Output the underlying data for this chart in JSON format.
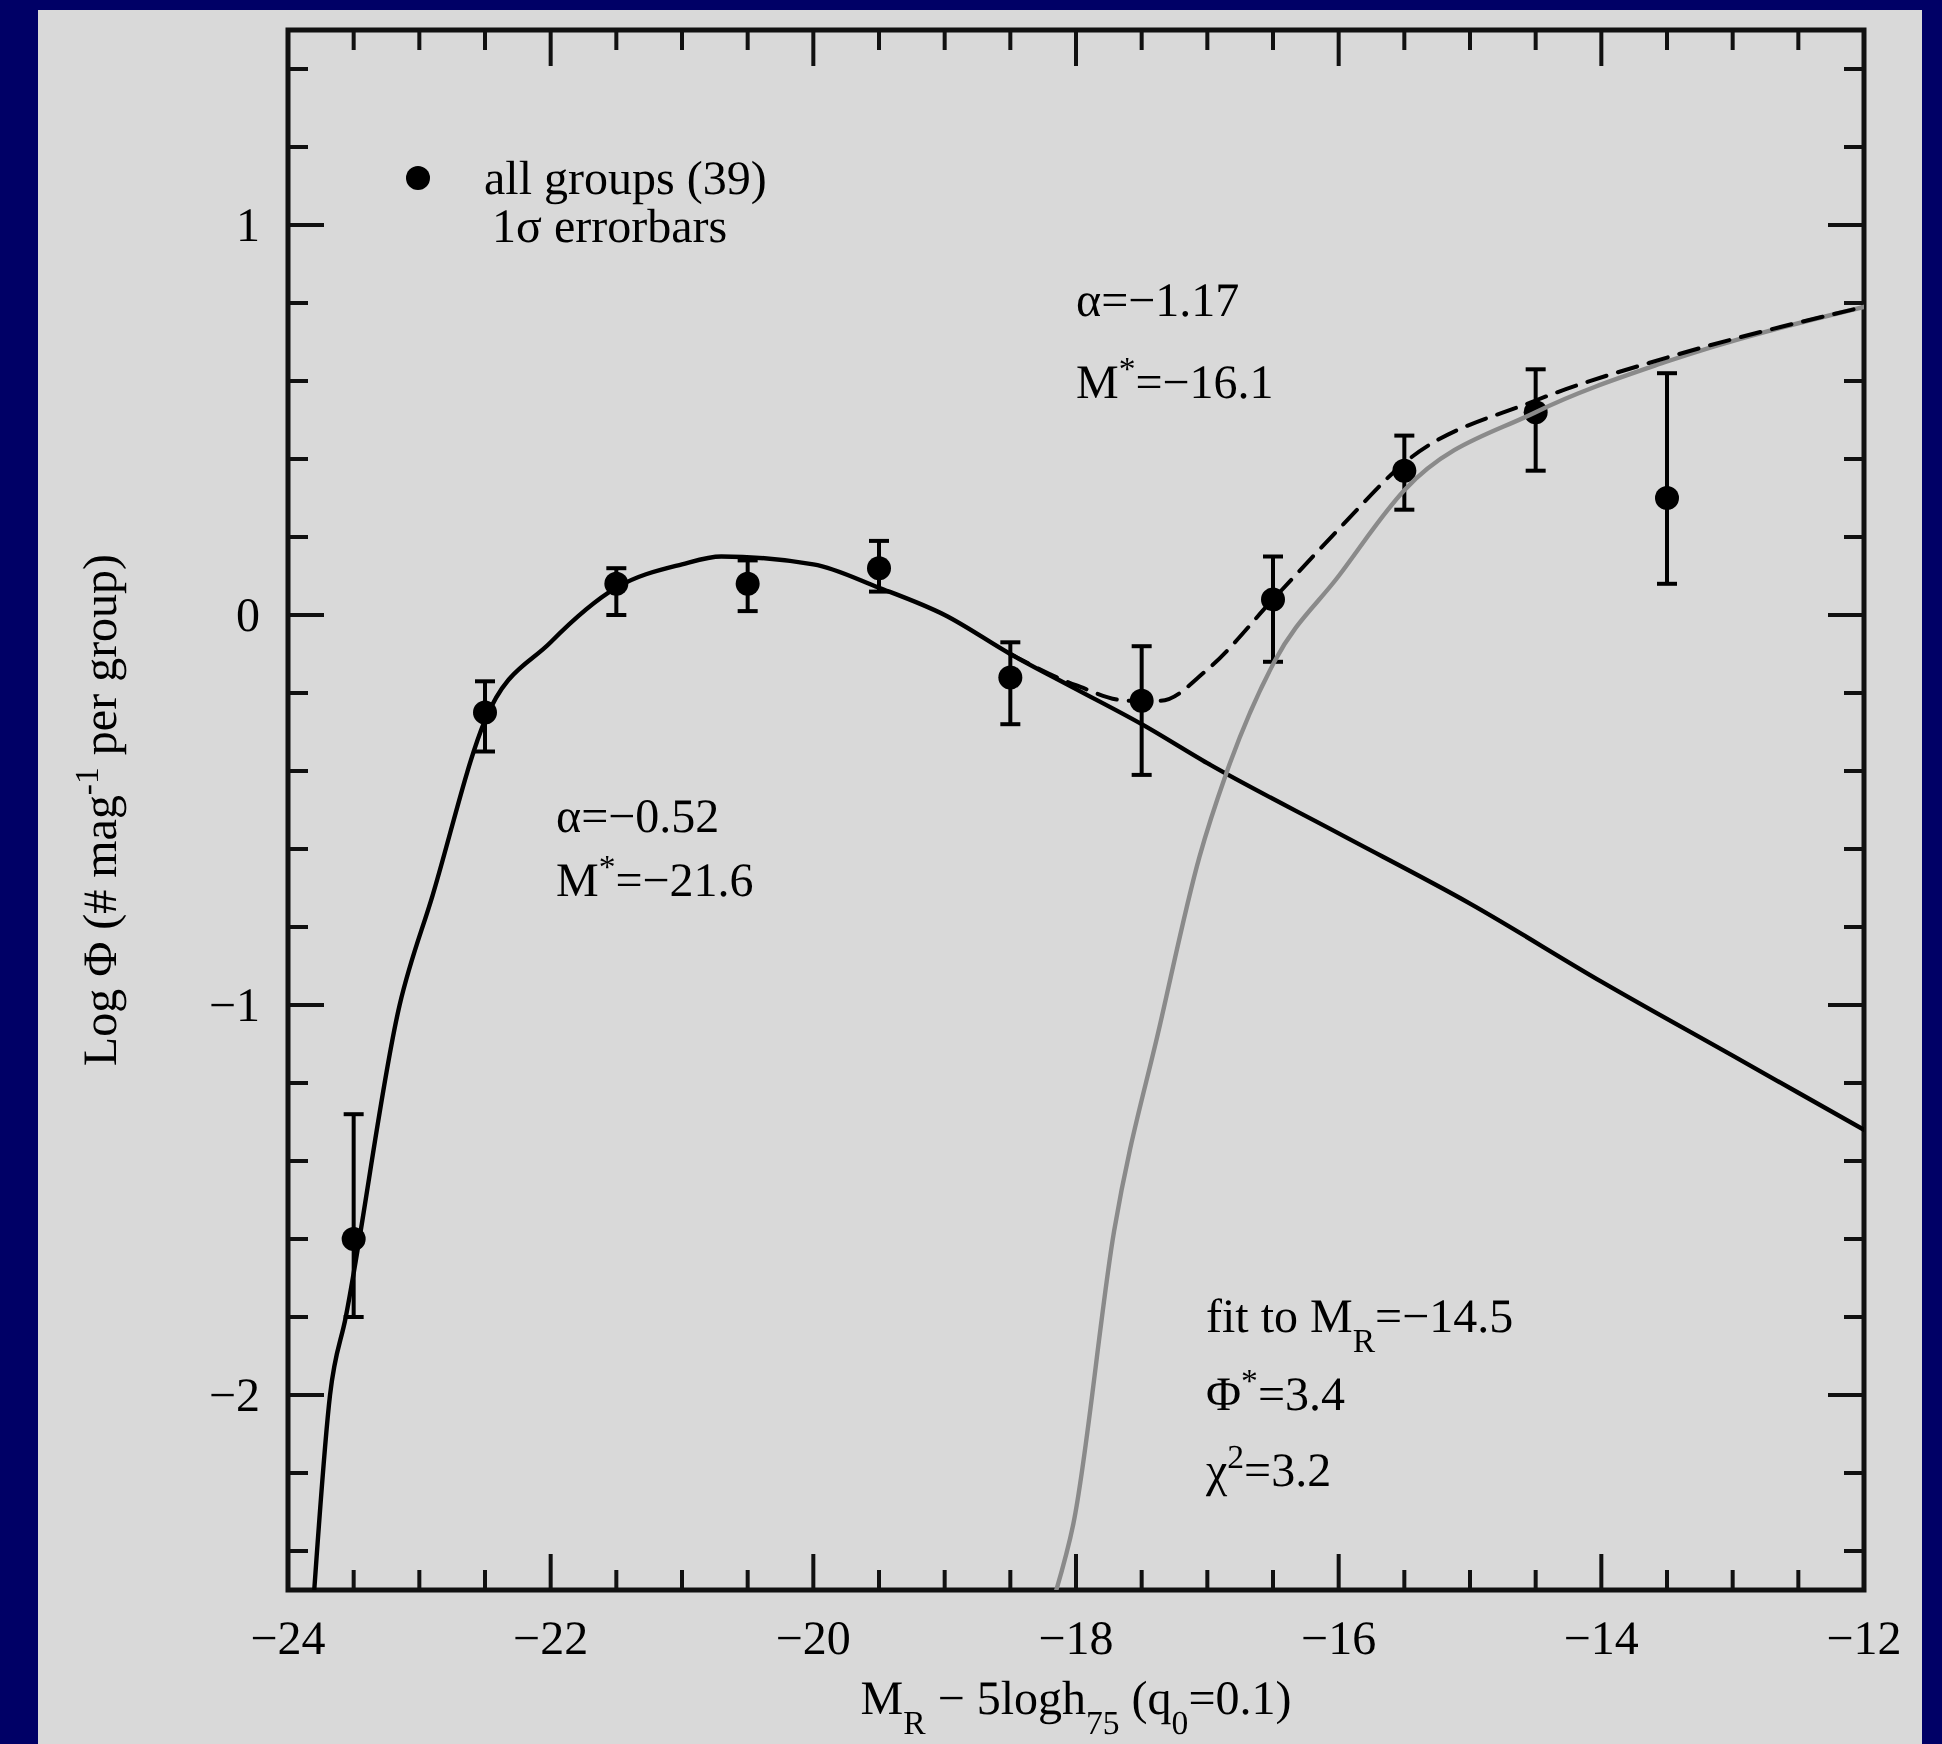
{
  "chart_data": {
    "type": "scatter",
    "xlabel": "M$_{R}$ − 5logh$_{75}$   (q$_{0}$=0.1)",
    "ylabel": "Log Φ (# mag$^{-1}$ per group)",
    "xlim": [
      -24,
      -12
    ],
    "ylim": [
      -2.5,
      1.5
    ],
    "xticks": [
      -24,
      {
        "value": -23.5,
        "label": null
      },
      {
        "value": -23,
        "label": null
      },
      {
        "value": -22.5,
        "label": null
      },
      -22,
      {
        "value": -21.5,
        "label": null
      },
      {
        "value": -21,
        "label": null
      },
      {
        "value": -20.5,
        "label": null
      },
      -20,
      {
        "value": -19.5,
        "label": null
      },
      {
        "value": -19,
        "label": null
      },
      {
        "value": -18.5,
        "label": null
      },
      -18,
      {
        "value": -17.5,
        "label": null
      },
      {
        "value": -17,
        "label": null
      },
      {
        "value": -16.5,
        "label": null
      },
      -16,
      {
        "value": -15.5,
        "label": null
      },
      {
        "value": -15,
        "label": null
      },
      {
        "value": -14.5,
        "label": null
      },
      -14,
      {
        "value": -13.5,
        "label": null
      },
      {
        "value": -13,
        "label": null
      },
      {
        "value": -12.5,
        "label": null
      },
      -12
    ],
    "yticks": [
      {
        "value": -2.4,
        "label": null
      },
      {
        "value": -2.2,
        "label": null
      },
      -2,
      {
        "value": -1.8,
        "label": null
      },
      {
        "value": -1.6,
        "label": null
      },
      {
        "value": -1.4,
        "label": null
      },
      {
        "value": -1.2,
        "label": null
      },
      -1,
      {
        "value": -0.8,
        "label": null
      },
      {
        "value": -0.6,
        "label": null
      },
      {
        "value": -0.4,
        "label": null
      },
      {
        "value": -0.2,
        "label": null
      },
      0,
      {
        "value": 0.2,
        "label": null
      },
      {
        "value": 0.4,
        "label": null
      },
      {
        "value": 0.6,
        "label": null
      },
      {
        "value": 0.8,
        "label": null
      },
      1,
      {
        "value": 1.2,
        "label": null
      },
      {
        "value": 1.4,
        "label": null
      }
    ],
    "legend": "top left",
    "grid": false,
    "series": [
      {
        "name": "all groups (39)",
        "color": "#000000",
        "marker": "circle",
        "x": [
          -23.5,
          -22.5,
          -21.5,
          -20.5,
          -19.5,
          -18.5,
          -17.5,
          -16.5,
          -15.5,
          -14.5,
          -13.5
        ],
        "values": [
          -1.6,
          -0.25,
          0.08,
          0.08,
          0.12,
          -0.16,
          -0.22,
          0.04,
          0.37,
          0.52,
          0.3
        ],
        "errors": [
          [
            -1.8,
            -1.28
          ],
          [
            -0.35,
            -0.17
          ],
          [
            0.0,
            0.12
          ],
          [
            0.01,
            0.14
          ],
          [
            0.06,
            0.19
          ],
          [
            -0.28,
            -0.07
          ],
          [
            -0.41,
            -0.08
          ],
          [
            -0.12,
            0.15
          ],
          [
            0.27,
            0.46
          ],
          [
            0.37,
            0.63
          ],
          [
            0.08,
            0.62
          ]
        ]
      },
      {
        "type": "line",
        "color": "#000000",
        "line_style": "solid",
        "x": [
          -23.8,
          -23.68,
          -23.56,
          -23.15,
          -22.9,
          -22.5,
          -22,
          -21.5,
          -21,
          -20.7,
          -20,
          -19.5,
          -19,
          -18.5,
          -18,
          -17.5,
          -17,
          -16,
          -15,
          -14,
          -13,
          -12
        ],
        "values": [
          -2.5,
          -2,
          -1.8,
          -1,
          -0.72,
          -0.27,
          -0.07,
          0.07,
          0.13,
          0.15,
          0.13,
          0.07,
          0,
          -0.1,
          -0.19,
          -0.28,
          -0.38,
          -0.56,
          -0.74,
          -0.94,
          -1.13,
          -1.32
        ]
      },
      {
        "type": "line",
        "color": "#8a8a8a",
        "line_style": "solid",
        "x": [
          -18.15,
          -18.02,
          -17.71,
          -17.36,
          -17.06,
          -16.86,
          -16.49,
          -16,
          -15.5,
          -14.5,
          -13.5,
          -12
        ],
        "values": [
          -2.5,
          -2.33,
          -1.58,
          -1.05,
          -0.62,
          -0.41,
          -0.12,
          0.1,
          0.32,
          0.52,
          0.65,
          0.79
        ]
      },
      {
        "type": "line",
        "color": "#000000",
        "line_style": "dashed",
        "x": [
          -18.5,
          -18,
          -17.6,
          -17.36,
          -17,
          -16.5,
          -16,
          -15.5,
          -14.5,
          -13.5,
          -12
        ],
        "values": [
          -0.1,
          -0.18,
          -0.22,
          -0.22,
          -0.14,
          0.04,
          0.22,
          0.39,
          0.55,
          0.66,
          0.79
        ]
      }
    ],
    "annotations": [
      "1σ errorbars",
      "α=−1.17",
      "M$^{*}$=−16.1",
      "α=−0.52",
      "M$^{*}$=−21.6",
      "fit to M$_{R}$=−14.5",
      "Φ$^{*}$=3.4",
      "χ$^{2}$=3.2"
    ]
  }
}
